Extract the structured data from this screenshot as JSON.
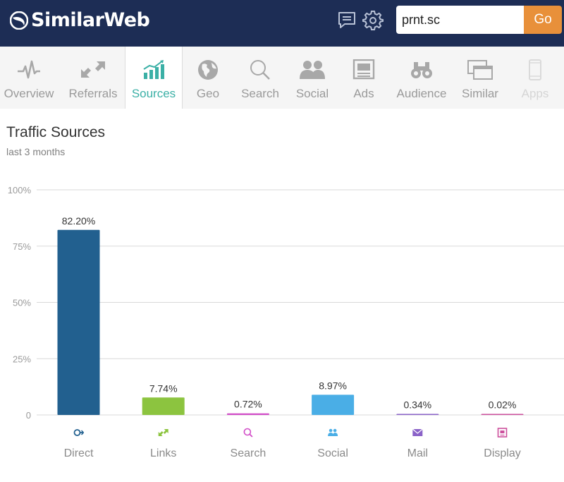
{
  "header": {
    "brand": "SimilarWeb",
    "icons": [
      "chat-icon",
      "gear-icon"
    ],
    "search_value": "prnt.sc",
    "go_label": "Go",
    "colors": {
      "background": "#1d2d55",
      "go_button": "#e8903a"
    }
  },
  "nav": {
    "items": [
      {
        "key": "overview",
        "label": "Overview",
        "icon": "pulse-icon",
        "active": false,
        "disabled": false
      },
      {
        "key": "referrals",
        "label": "Referrals",
        "icon": "arrows-icon",
        "active": false,
        "disabled": false
      },
      {
        "key": "sources",
        "label": "Sources",
        "icon": "bar-chart-icon",
        "active": true,
        "disabled": false
      },
      {
        "key": "geo",
        "label": "Geo",
        "icon": "globe-icon",
        "active": false,
        "disabled": false
      },
      {
        "key": "search",
        "label": "Search",
        "icon": "magnifier-icon",
        "active": false,
        "disabled": false
      },
      {
        "key": "social",
        "label": "Social",
        "icon": "people-icon",
        "active": false,
        "disabled": false
      },
      {
        "key": "ads",
        "label": "Ads",
        "icon": "ads-icon",
        "active": false,
        "disabled": false
      },
      {
        "key": "audience",
        "label": "Audience",
        "icon": "binoculars-icon",
        "active": false,
        "disabled": false
      },
      {
        "key": "similar",
        "label": "Similar",
        "icon": "windows-icon",
        "active": false,
        "disabled": false
      },
      {
        "key": "apps",
        "label": "Apps",
        "icon": "phone-icon",
        "active": false,
        "disabled": true
      }
    ],
    "colors": {
      "active": "#3bb0a6",
      "inactive": "#9a9a9a"
    }
  },
  "chart_data": {
    "type": "bar",
    "title": "Traffic Sources",
    "subtitle": "last 3 months",
    "categories": [
      "Direct",
      "Links",
      "Search",
      "Social",
      "Mail",
      "Display"
    ],
    "values": [
      82.2,
      7.74,
      0.72,
      8.97,
      0.34,
      0.02
    ],
    "value_labels": [
      "82.20%",
      "7.74%",
      "0.72%",
      "8.97%",
      "0.34%",
      "0.02%"
    ],
    "icons": [
      "direct-icon",
      "links-icon",
      "search-icon",
      "social-icon",
      "mail-icon",
      "display-icon"
    ],
    "colors": [
      "#22608f",
      "#8cc43f",
      "#d24ec8",
      "#4aaee6",
      "#8a62c8",
      "#cc4f9c"
    ],
    "icon_colors": [
      "#22608f",
      "#8cc43f",
      "#d24ec8",
      "#4aaee6",
      "#8a62c8",
      "#cc4f9c"
    ],
    "y_ticks": [
      0,
      25,
      50,
      75,
      100
    ],
    "y_tick_labels": [
      "0",
      "25%",
      "50%",
      "75%",
      "100%"
    ],
    "ylim": [
      0,
      100
    ],
    "grid": true
  }
}
